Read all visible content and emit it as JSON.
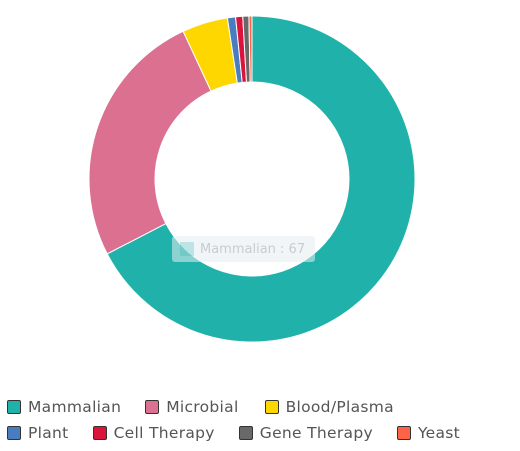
{
  "chart_data": {
    "type": "pie",
    "categories": [
      "Mammalian",
      "Microbial",
      "Blood/Plasma",
      "Plant",
      "Cell Therapy",
      "Gene Therapy",
      "Yeast"
    ],
    "values": [
      67,
      25.5,
      4.5,
      0.8,
      0.7,
      0.6,
      0.3
    ],
    "colors": [
      "#20b2aa",
      "#dc7090",
      "#ffd700",
      "#4a7dbf",
      "#dc143c",
      "#696969",
      "#ff6347"
    ],
    "donut": true,
    "legend_position": "bottom",
    "tooltip": {
      "text": "Mammalian : 67"
    }
  }
}
